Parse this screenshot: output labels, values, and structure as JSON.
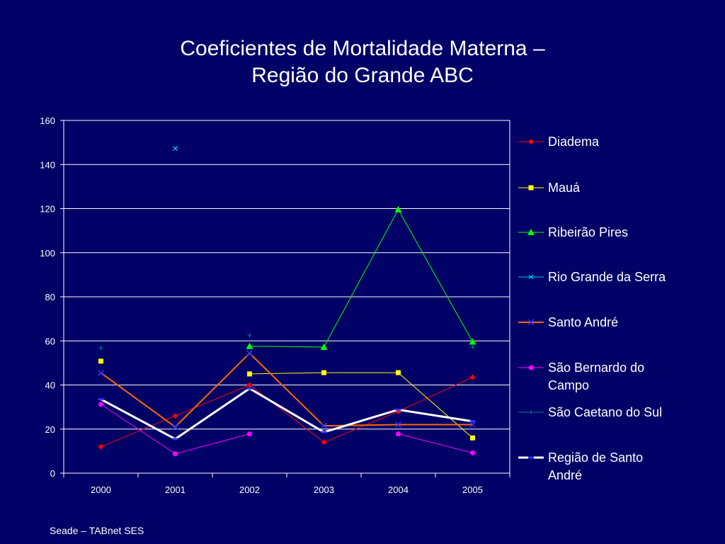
{
  "title": {
    "line1": "Coeficientes de Mortalidade Materna –",
    "line2": "Região do Grande ABC"
  },
  "source": "Seade – TABnet SES",
  "chart_data": {
    "type": "line",
    "title": "Coeficientes de Mortalidade Materna – Região do Grande ABC",
    "xlabel": "",
    "ylabel": "",
    "x": [
      "2000",
      "2001",
      "2002",
      "2003",
      "2004",
      "2005"
    ],
    "ylim": [
      0,
      160
    ],
    "yticks": [
      0,
      20,
      40,
      60,
      80,
      100,
      120,
      140,
      160
    ],
    "grid": true,
    "legend_position": "right",
    "series": [
      {
        "name": "Diadema",
        "color": "#ff0000",
        "marker": "diamond",
        "line": true,
        "values": [
          12,
          26,
          40,
          14,
          28,
          43.5
        ]
      },
      {
        "name": "Mauá",
        "color": "#ffff00",
        "marker": "square",
        "line": true,
        "values": [
          50.8,
          null,
          45,
          45.6,
          45.6,
          16
        ]
      },
      {
        "name": "Ribeirão Pires",
        "color": "#00ff00",
        "marker": "triangle",
        "line": true,
        "values": [
          null,
          null,
          57.6,
          57.2,
          119.6,
          59.6
        ]
      },
      {
        "name": "Rio Grande da Serra",
        "color": "#00ccff",
        "marker": "x",
        "line": false,
        "values": [
          null,
          147.3,
          null,
          null,
          null,
          null
        ]
      },
      {
        "name": "Santo André",
        "color": "#ff6600",
        "marker": "x-blue",
        "line": true,
        "values": [
          45.5,
          21,
          54.4,
          21.5,
          22,
          22
        ]
      },
      {
        "name": "São Bernardo do Campo",
        "color": "#ff00ff",
        "marker": "circle",
        "line": true,
        "values": [
          31.2,
          8.8,
          17.8,
          null,
          17.8,
          9.2
        ]
      },
      {
        "name": "São Caetano do Sul",
        "color": "#008080",
        "marker": "plus",
        "line": false,
        "values": [
          56.8,
          null,
          62.6,
          null,
          null,
          57.2
        ]
      },
      {
        "name": "Região de Santo André",
        "color": "#ffffff",
        "marker": "dash",
        "line": true,
        "values": [
          33.5,
          15.5,
          38.4,
          18.6,
          28.8,
          23.5
        ]
      }
    ]
  }
}
